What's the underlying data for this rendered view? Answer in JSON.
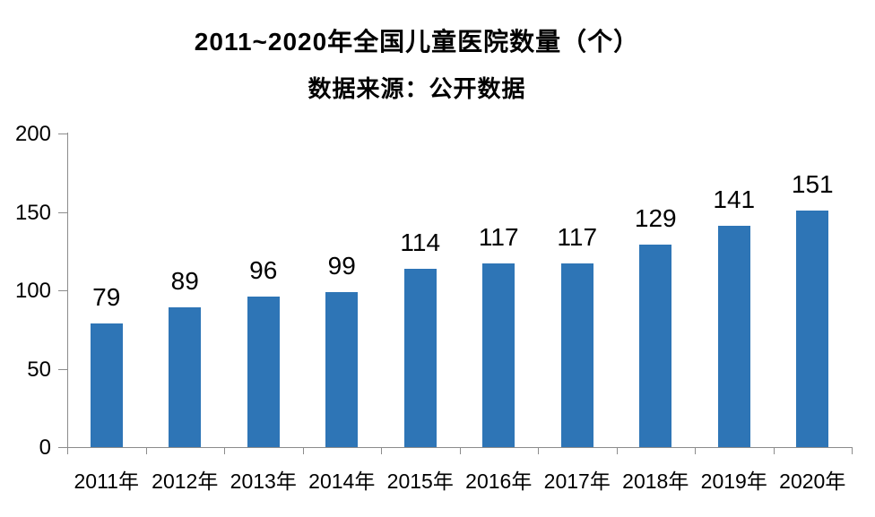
{
  "chart_data": {
    "type": "bar",
    "title": "2011~2020年全国儿童医院数量（个）",
    "subtitle": "数据来源：公开数据",
    "categories": [
      "2011年",
      "2012年",
      "2013年",
      "2014年",
      "2015年",
      "2016年",
      "2017年",
      "2018年",
      "2019年",
      "2020年"
    ],
    "values": [
      79,
      89,
      96,
      99,
      114,
      117,
      117,
      129,
      141,
      151
    ],
    "xlabel": "",
    "ylabel": "",
    "ylim": [
      0,
      200
    ],
    "yticks": [
      0,
      50,
      100,
      150,
      200
    ],
    "grid": false,
    "legend_position": "none",
    "data_labels": true,
    "bar_color": "#2E75B6",
    "axis_color": "#8C8C8C",
    "text_color": "#000000",
    "background_color": "#FFFFFF"
  }
}
